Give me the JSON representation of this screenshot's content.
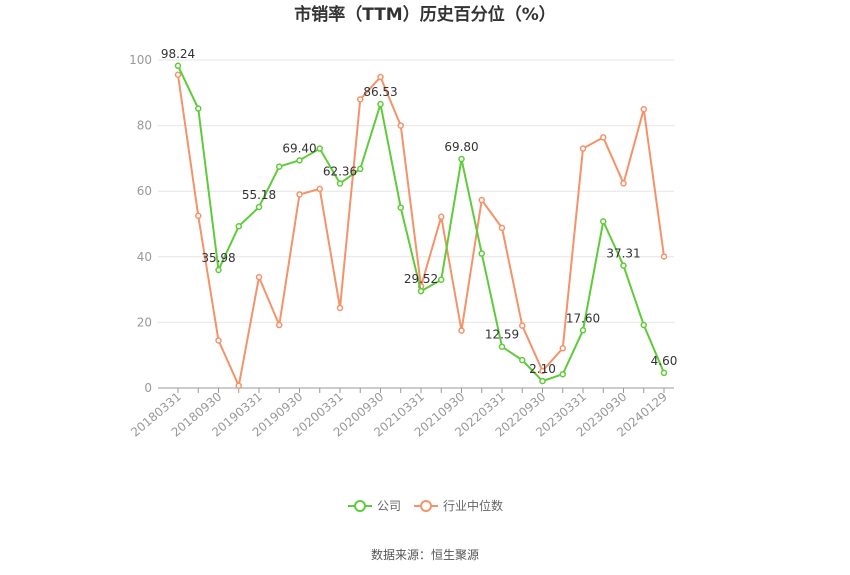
{
  "chart_data": {
    "type": "line",
    "title": "市销率（TTM）历史百分位（%）",
    "xlabel": "",
    "ylabel": "",
    "ylim": [
      0,
      100
    ],
    "y_ticks": [
      0,
      20,
      40,
      60,
      80,
      100
    ],
    "x_tick_labels": [
      "20180331",
      "20180930",
      "20190331",
      "20190930",
      "20200331",
      "20200930",
      "20210331",
      "20210930",
      "20220331",
      "20220930",
      "20230331",
      "20230930",
      "20240129"
    ],
    "x_tick_indices": [
      0,
      2,
      4,
      6,
      8,
      10,
      12,
      14,
      16,
      18,
      20,
      22,
      24
    ],
    "grid": "horizontal",
    "legend_placement": "bottom",
    "series": [
      {
        "name": "公司",
        "color": "#5fcb3a",
        "values": [
          98.24,
          85.2,
          35.98,
          49.3,
          55.18,
          67.5,
          69.4,
          73.0,
          62.36,
          66.8,
          86.53,
          55.0,
          29.52,
          33.0,
          69.8,
          41.0,
          12.59,
          8.5,
          2.1,
          4.2,
          17.6,
          50.8,
          37.31,
          19.2,
          4.6
        ]
      },
      {
        "name": "行业中位数",
        "color": "#f4936a",
        "values": [
          95.5,
          52.5,
          14.5,
          0.7,
          33.8,
          19.2,
          59.0,
          60.7,
          24.4,
          88.0,
          94.8,
          80.0,
          31.0,
          52.2,
          17.5,
          57.3,
          48.8,
          19.0,
          5.2,
          12.1,
          73.0,
          76.4,
          62.4,
          85.0,
          40.1
        ]
      }
    ],
    "data_labels": [
      {
        "index": 0,
        "text": "98.24"
      },
      {
        "index": 2,
        "text": "35.98"
      },
      {
        "index": 4,
        "text": "55.18"
      },
      {
        "index": 6,
        "text": "69.40"
      },
      {
        "index": 8,
        "text": "62.36"
      },
      {
        "index": 10,
        "text": "86.53"
      },
      {
        "index": 12,
        "text": "29.52"
      },
      {
        "index": 14,
        "text": "69.80"
      },
      {
        "index": 16,
        "text": "12.59"
      },
      {
        "index": 18,
        "text": "2.10"
      },
      {
        "index": 20,
        "text": "17.60"
      },
      {
        "index": 22,
        "text": "37.31"
      },
      {
        "index": 24,
        "text": "4.60"
      }
    ]
  },
  "legend": {
    "company": "公司",
    "industry": "行业中位数"
  },
  "source_text": "数据来源：恒生聚源"
}
